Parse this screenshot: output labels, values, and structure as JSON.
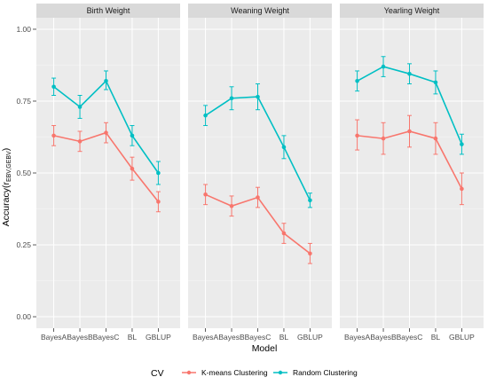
{
  "chart_data": {
    "type": "line",
    "ylabel": "Accuracy(r",
    "ylabel_sub": "EBV,GEBV",
    "ylabel_close": ")",
    "xlabel": "Model",
    "categories": [
      "BayesA",
      "BayesB",
      "BayesC",
      "BL",
      "GBLUP"
    ],
    "ylim": [
      -0.04,
      1.04
    ],
    "yticks": [
      0.0,
      0.25,
      0.5,
      0.75,
      1.0
    ],
    "ytick_labels": [
      "0.00",
      "0.25",
      "0.50",
      "0.75",
      "1.00"
    ],
    "grid": true,
    "legend": {
      "title": "CV",
      "placement": "bottom",
      "entries": [
        {
          "label": "K-means Clustering",
          "color": "#F8766D"
        },
        {
          "label": "Random Clustering",
          "color": "#00BFC4"
        }
      ]
    },
    "facets": [
      {
        "title": "Birth Weight",
        "series": [
          {
            "key": "kmeans",
            "color": "#F8766D",
            "values": [
              0.63,
              0.61,
              0.64,
              0.515,
              0.4
            ],
            "lower": [
              0.595,
              0.575,
              0.605,
              0.475,
              0.365
            ],
            "upper": [
              0.665,
              0.645,
              0.675,
              0.555,
              0.435
            ]
          },
          {
            "key": "random",
            "color": "#00BFC4",
            "values": [
              0.8,
              0.73,
              0.82,
              0.63,
              0.5
            ],
            "lower": [
              0.77,
              0.69,
              0.79,
              0.595,
              0.46
            ],
            "upper": [
              0.83,
              0.77,
              0.855,
              0.665,
              0.54
            ]
          }
        ]
      },
      {
        "title": "Weaning Weight",
        "series": [
          {
            "key": "kmeans",
            "color": "#F8766D",
            "values": [
              0.425,
              0.385,
              0.415,
              0.29,
              0.22
            ],
            "lower": [
              0.39,
              0.35,
              0.38,
              0.255,
              0.185
            ],
            "upper": [
              0.46,
              0.42,
              0.45,
              0.325,
              0.255
            ]
          },
          {
            "key": "random",
            "color": "#00BFC4",
            "values": [
              0.7,
              0.76,
              0.765,
              0.59,
              0.405
            ],
            "lower": [
              0.665,
              0.72,
              0.72,
              0.55,
              0.38
            ],
            "upper": [
              0.735,
              0.8,
              0.81,
              0.63,
              0.43
            ]
          }
        ]
      },
      {
        "title": "Yearling Weight",
        "series": [
          {
            "key": "kmeans",
            "color": "#F8766D",
            "values": [
              0.63,
              0.62,
              0.645,
              0.62,
              0.445
            ],
            "lower": [
              0.58,
              0.565,
              0.59,
              0.565,
              0.39
            ],
            "upper": [
              0.685,
              0.675,
              0.7,
              0.675,
              0.5
            ]
          },
          {
            "key": "random",
            "color": "#00BFC4",
            "values": [
              0.82,
              0.87,
              0.845,
              0.815,
              0.6
            ],
            "lower": [
              0.785,
              0.835,
              0.81,
              0.775,
              0.565
            ],
            "upper": [
              0.855,
              0.905,
              0.88,
              0.855,
              0.635
            ]
          }
        ]
      }
    ]
  }
}
